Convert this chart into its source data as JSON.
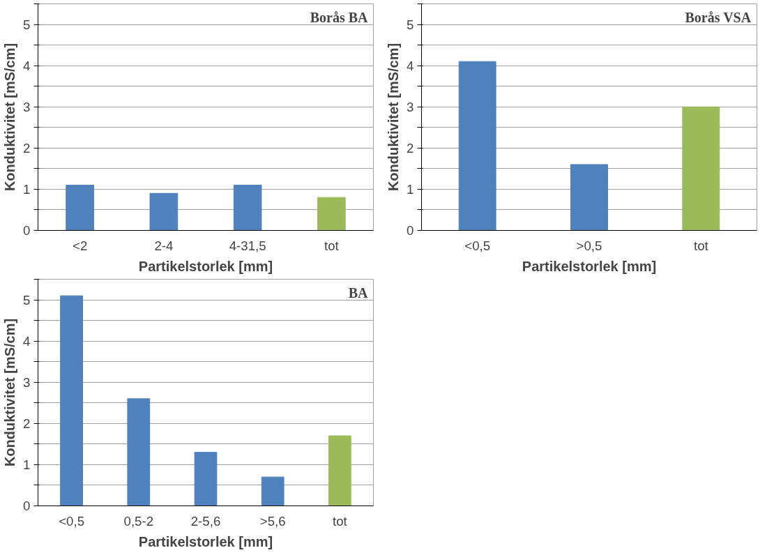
{
  "chart_data": [
    {
      "type": "bar",
      "title": "Borås BA",
      "xlabel": "Partikelstorlek [mm]",
      "ylabel": "Konduktivitet [mS/cm]",
      "categories": [
        "<2",
        "2-4",
        "4-31,5",
        "tot"
      ],
      "values": [
        1.1,
        0.9,
        1.1,
        0.8
      ],
      "colors": [
        "#4f81bd",
        "#4f81bd",
        "#4f81bd",
        "#9bbb59"
      ],
      "ylim": [
        0,
        5.5
      ],
      "yticks": [
        0,
        {
          "value": 0.5,
          "label": null
        },
        1,
        {
          "value": 1.5,
          "label": null
        },
        2,
        {
          "value": 2.5,
          "label": null
        },
        3,
        {
          "value": 3.5,
          "label": null
        },
        4,
        {
          "value": 4.5,
          "label": null
        },
        5,
        {
          "value": 5.5,
          "label": null
        }
      ],
      "grid": "y"
    },
    {
      "type": "bar",
      "title": "Borås VSA",
      "xlabel": "Partikelstorlek [mm]",
      "ylabel": "Konduktivitet [mS/cm]",
      "categories": [
        "<0,5",
        ">0,5",
        "tot"
      ],
      "values": [
        4.1,
        1.6,
        3.0
      ],
      "colors": [
        "#4f81bd",
        "#4f81bd",
        "#9bbb59"
      ],
      "ylim": [
        0,
        5.5
      ],
      "yticks": [
        0,
        {
          "value": 0.5,
          "label": null
        },
        1,
        {
          "value": 1.5,
          "label": null
        },
        2,
        {
          "value": 2.5,
          "label": null
        },
        3,
        {
          "value": 3.5,
          "label": null
        },
        4,
        {
          "value": 4.5,
          "label": null
        },
        5,
        {
          "value": 5.5,
          "label": null
        }
      ],
      "grid": "y"
    },
    {
      "type": "bar",
      "title": "BA",
      "xlabel": "Partikelstorlek [mm]",
      "ylabel": "Konduktivitet [mS/cm]",
      "categories": [
        "<0,5",
        "0,5-2",
        "2-5,6",
        ">5,6",
        "tot"
      ],
      "values": [
        5.1,
        2.6,
        1.3,
        0.7,
        1.7
      ],
      "colors": [
        "#4f81bd",
        "#4f81bd",
        "#4f81bd",
        "#4f81bd",
        "#9bbb59"
      ],
      "ylim": [
        0,
        5.5
      ],
      "yticks": [
        0,
        {
          "value": 0.5,
          "label": null
        },
        1,
        {
          "value": 1.5,
          "label": null
        },
        2,
        {
          "value": 2.5,
          "label": null
        },
        3,
        {
          "value": 3.5,
          "label": null
        },
        4,
        {
          "value": 4.5,
          "label": null
        },
        5,
        {
          "value": 5.5,
          "label": null
        }
      ],
      "grid": "y"
    }
  ]
}
